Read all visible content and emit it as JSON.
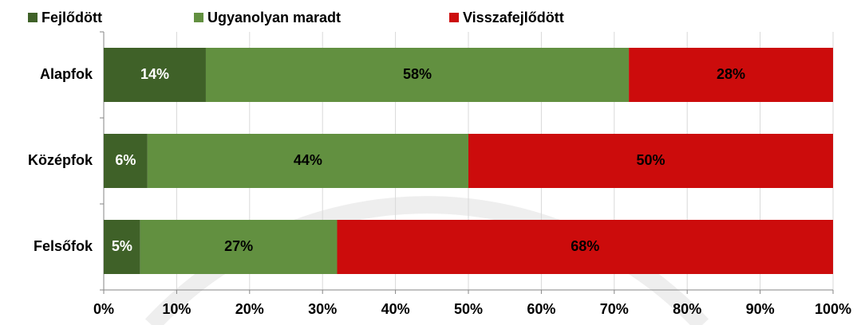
{
  "chart_data": {
    "type": "stacked_barh",
    "categories": [
      "Alapfok",
      "Középfok",
      "Felsőfok"
    ],
    "series": [
      {
        "name": "Fejlődött",
        "color": "#3f6128",
        "label_color": "#ffffff",
        "values": [
          14,
          6,
          5
        ],
        "value_labels": [
          "14%",
          "6%",
          "5%"
        ]
      },
      {
        "name": "Ugyanolyan maradt",
        "color": "#629040",
        "label_color": "#000000",
        "values": [
          58,
          44,
          27
        ],
        "value_labels": [
          "58%",
          "44%",
          "27%"
        ]
      },
      {
        "name": "Visszafejlődött",
        "color": "#cc0c0c",
        "label_color": "#000000",
        "values": [
          28,
          50,
          68
        ],
        "value_labels": [
          "28%",
          "50%",
          "68%"
        ]
      }
    ],
    "xlim": [
      0,
      100
    ],
    "xticks": [
      {
        "value": 0,
        "label": "0%"
      },
      {
        "value": 10,
        "label": "10%"
      },
      {
        "value": 20,
        "label": "20%"
      },
      {
        "value": 30,
        "label": "30%"
      },
      {
        "value": 40,
        "label": "40%"
      },
      {
        "value": 50,
        "label": "50%"
      },
      {
        "value": 60,
        "label": "60%"
      },
      {
        "value": 70,
        "label": "70%"
      },
      {
        "value": 80,
        "label": "80%"
      },
      {
        "value": 90,
        "label": "90%"
      },
      {
        "value": 100,
        "label": "100%"
      }
    ],
    "grid": true,
    "legend": "top"
  }
}
